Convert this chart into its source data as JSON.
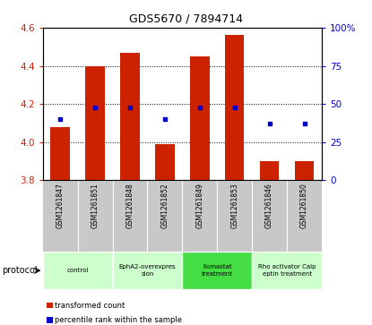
{
  "title": "GDS5670 / 7894714",
  "samples": [
    "GSM1261847",
    "GSM1261851",
    "GSM1261848",
    "GSM1261852",
    "GSM1261849",
    "GSM1261853",
    "GSM1261846",
    "GSM1261850"
  ],
  "transformed_counts": [
    4.08,
    4.4,
    4.47,
    3.99,
    4.45,
    4.56,
    3.9,
    3.9
  ],
  "percentile_ranks": [
    40,
    48,
    48,
    40,
    48,
    48,
    37,
    37
  ],
  "ylim_left": [
    3.8,
    4.6
  ],
  "ylim_right": [
    0,
    100
  ],
  "yticks_left": [
    3.8,
    4.0,
    4.2,
    4.4,
    4.6
  ],
  "yticks_right": [
    0,
    25,
    50,
    75,
    100
  ],
  "bar_color": "#cc2200",
  "dot_color": "#0000cc",
  "bar_bottom": 3.8,
  "protocols": [
    {
      "label": "control",
      "samples": [
        0,
        1
      ],
      "color": "#ccffcc"
    },
    {
      "label": "EphA2-overexpres\nsion",
      "samples": [
        2,
        3
      ],
      "color": "#ccffcc"
    },
    {
      "label": "Ilomastat\ntreatment",
      "samples": [
        4,
        5
      ],
      "color": "#44dd44"
    },
    {
      "label": "Rho activator Calp\neptin treatment",
      "samples": [
        6,
        7
      ],
      "color": "#ccffcc"
    }
  ],
  "legend_items": [
    {
      "color": "#cc2200",
      "label": "transformed count"
    },
    {
      "color": "#0000cc",
      "label": "percentile rank within the sample"
    }
  ],
  "protocol_label": "protocol",
  "background_color": "#ffffff",
  "tick_label_color_left": "#cc2200",
  "tick_label_color_right": "#0000cc",
  "sample_bg": "#c8c8c8",
  "title_fontsize": 9
}
